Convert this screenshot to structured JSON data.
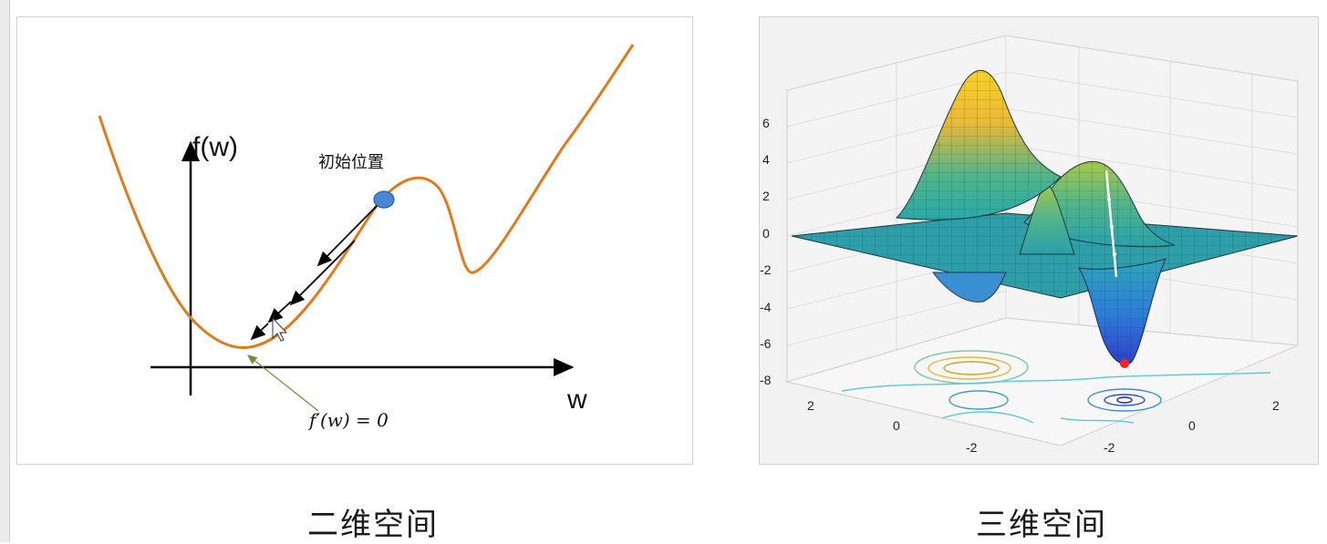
{
  "left_panel": {
    "y_axis_label": "f(w)",
    "x_axis_label": "w",
    "start_label": "初始位置",
    "minimum_label": "f′(w) = 0",
    "curve_color": "#e07b1a",
    "start_point_color": "#4a86d6"
  },
  "right_panel": {
    "z_ticks": [
      "6",
      "4",
      "2",
      "0",
      "-2",
      "-4",
      "-6",
      "-8"
    ],
    "x_ticks": [
      "2",
      "0",
      "-2"
    ],
    "y_ticks": [
      "2",
      "0",
      "-2"
    ],
    "minimum_marker_color": "#ff2020",
    "path_color": "#ffffff"
  },
  "captions": {
    "left": "二维空间",
    "right": "三维空间"
  }
}
